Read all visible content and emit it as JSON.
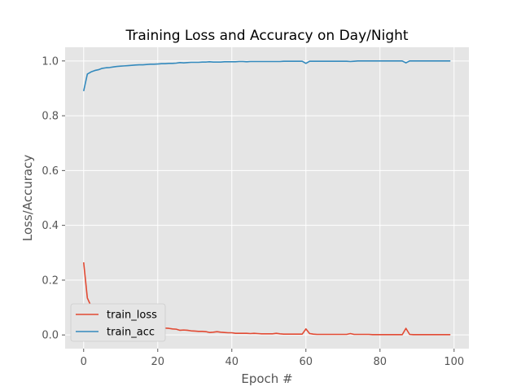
{
  "chart_data": {
    "type": "line",
    "title": "Training Loss and Accuracy on Day/Night",
    "xlabel": "Epoch #",
    "ylabel": "Loss/Accuracy",
    "xlim": [
      -5,
      104
    ],
    "ylim": [
      -0.05,
      1.05
    ],
    "xticks": [
      0,
      20,
      40,
      60,
      80,
      100
    ],
    "yticks": [
      0.0,
      0.2,
      0.4,
      0.6,
      0.8,
      1.0
    ],
    "grid": true,
    "style": "ggplot",
    "legend_position": "lower-left",
    "x": [
      0,
      1,
      2,
      3,
      4,
      5,
      6,
      7,
      8,
      9,
      10,
      11,
      12,
      13,
      14,
      15,
      16,
      17,
      18,
      19,
      20,
      21,
      22,
      23,
      24,
      25,
      26,
      27,
      28,
      29,
      30,
      31,
      32,
      33,
      34,
      35,
      36,
      37,
      38,
      39,
      40,
      41,
      42,
      43,
      44,
      45,
      46,
      47,
      48,
      49,
      50,
      51,
      52,
      53,
      54,
      55,
      56,
      57,
      58,
      59,
      60,
      61,
      62,
      63,
      64,
      65,
      66,
      67,
      68,
      69,
      70,
      71,
      72,
      73,
      74,
      75,
      76,
      77,
      78,
      79,
      80,
      81,
      82,
      83,
      84,
      85,
      86,
      87,
      88,
      89,
      90,
      91,
      92,
      93,
      94,
      95,
      96,
      97,
      98,
      99
    ],
    "series": [
      {
        "name": "train_loss",
        "color": "#E24A33",
        "values": [
          0.265,
          0.135,
          0.105,
          0.093,
          0.083,
          0.072,
          0.067,
          0.063,
          0.058,
          0.054,
          0.051,
          0.048,
          0.045,
          0.042,
          0.04,
          0.037,
          0.035,
          0.033,
          0.031,
          0.029,
          0.027,
          0.026,
          0.025,
          0.024,
          0.022,
          0.021,
          0.017,
          0.018,
          0.017,
          0.015,
          0.014,
          0.013,
          0.013,
          0.012,
          0.009,
          0.01,
          0.012,
          0.01,
          0.009,
          0.008,
          0.008,
          0.006,
          0.006,
          0.006,
          0.006,
          0.005,
          0.006,
          0.005,
          0.004,
          0.004,
          0.004,
          0.004,
          0.006,
          0.004,
          0.003,
          0.003,
          0.003,
          0.003,
          0.003,
          0.003,
          0.022,
          0.005,
          0.003,
          0.002,
          0.002,
          0.002,
          0.002,
          0.002,
          0.002,
          0.002,
          0.002,
          0.002,
          0.005,
          0.002,
          0.002,
          0.002,
          0.002,
          0.002,
          0.001,
          0.001,
          0.001,
          0.001,
          0.001,
          0.001,
          0.001,
          0.001,
          0.001,
          0.024,
          0.002,
          0.001,
          0.001,
          0.001,
          0.001,
          0.001,
          0.001,
          0.001,
          0.001,
          0.001,
          0.001,
          0.001
        ]
      },
      {
        "name": "train_acc",
        "color": "#348ABD",
        "values": [
          0.89,
          0.952,
          0.96,
          0.965,
          0.968,
          0.973,
          0.975,
          0.976,
          0.978,
          0.98,
          0.981,
          0.982,
          0.983,
          0.984,
          0.985,
          0.986,
          0.986,
          0.987,
          0.988,
          0.988,
          0.989,
          0.99,
          0.99,
          0.991,
          0.991,
          0.992,
          0.994,
          0.993,
          0.994,
          0.995,
          0.995,
          0.995,
          0.996,
          0.996,
          0.997,
          0.996,
          0.996,
          0.996,
          0.997,
          0.997,
          0.997,
          0.997,
          0.998,
          0.998,
          0.997,
          0.998,
          0.998,
          0.998,
          0.998,
          0.998,
          0.998,
          0.998,
          0.998,
          0.998,
          0.999,
          0.999,
          0.999,
          0.999,
          0.999,
          0.999,
          0.991,
          0.999,
          0.999,
          0.999,
          0.999,
          0.999,
          0.999,
          0.999,
          0.999,
          0.999,
          0.999,
          0.999,
          0.998,
          0.999,
          1.0,
          1.0,
          1.0,
          1.0,
          1.0,
          1.0,
          1.0,
          1.0,
          1.0,
          1.0,
          1.0,
          1.0,
          1.0,
          0.993,
          1.0,
          1.0,
          1.0,
          1.0,
          1.0,
          1.0,
          1.0,
          1.0,
          1.0,
          1.0,
          1.0,
          1.0
        ]
      }
    ]
  }
}
